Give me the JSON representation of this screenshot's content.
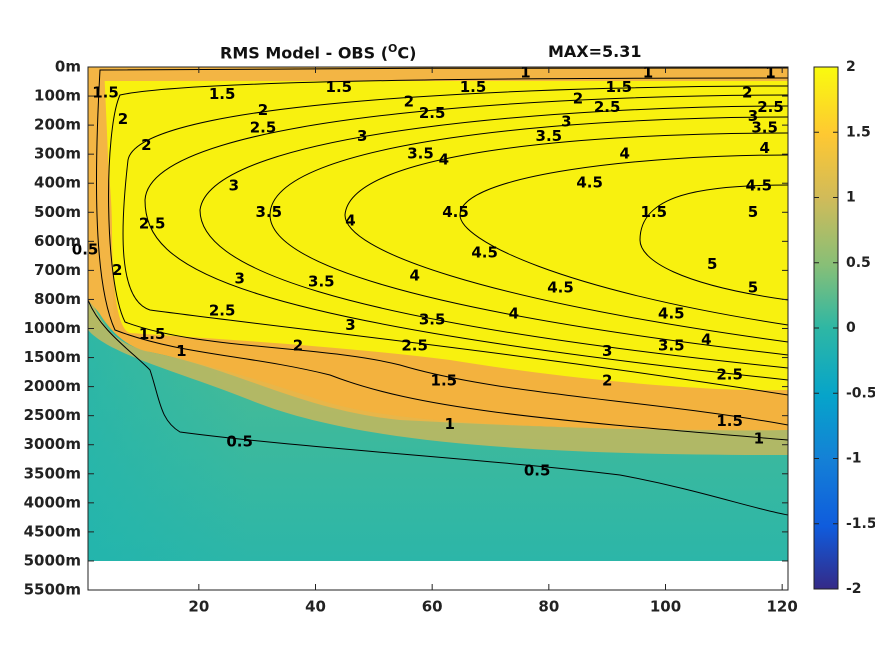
{
  "chart_data": {
    "type": "heatmap",
    "title": "RMS Model - OBS (",
    "title_unit": "°C)",
    "title_unit_sup": "O",
    "title_unit_tail": "C)",
    "max_label": "MAX=5.31",
    "x_ticks": [
      20,
      40,
      60,
      80,
      100,
      120
    ],
    "x_range": [
      1,
      121
    ],
    "y_ticks": [
      "0m",
      "100m",
      "200m",
      "300m",
      "400m",
      "500m",
      "600m",
      "700m",
      "800m",
      "1000m",
      "1500m",
      "2000m",
      "2500m",
      "3000m",
      "3500m",
      "4000m",
      "4500m",
      "5000m",
      "5500m"
    ],
    "data_bottom_label": "5000m",
    "colorbar": {
      "range": [
        -2,
        2
      ],
      "ticks": [
        "2",
        "1.5",
        "1",
        "0.5",
        "0",
        "-0.5",
        "-1",
        "-1.5",
        "-2"
      ],
      "colormap": "parula"
    },
    "contour_levels": [
      0.5,
      1,
      1.5,
      2,
      2.5,
      3,
      3.5,
      4,
      4.5,
      5
    ],
    "contour_labels": [
      {
        "text": "1.5",
        "x": 4,
        "y": 0.9
      },
      {
        "text": "1.5",
        "x": 24,
        "y": 0.95
      },
      {
        "text": "1.5",
        "x": 44,
        "y": 0.7
      },
      {
        "text": "1.5",
        "x": 67,
        "y": 0.7
      },
      {
        "text": "1",
        "x": 76,
        "y": 0.2
      },
      {
        "text": "1.5",
        "x": 92,
        "y": 0.7
      },
      {
        "text": "1",
        "x": 97,
        "y": 0.2
      },
      {
        "text": "1",
        "x": 118,
        "y": 0.2
      },
      {
        "text": "2",
        "x": 31,
        "y": 1.5
      },
      {
        "text": "2",
        "x": 56,
        "y": 1.2
      },
      {
        "text": "2",
        "x": 85,
        "y": 1.1
      },
      {
        "text": "2",
        "x": 114,
        "y": 0.9
      },
      {
        "text": "2.5",
        "x": 31,
        "y": 2.1
      },
      {
        "text": "2.5",
        "x": 60,
        "y": 1.6
      },
      {
        "text": "2.5",
        "x": 90,
        "y": 1.4
      },
      {
        "text": "2.5",
        "x": 118,
        "y": 1.4
      },
      {
        "text": "3",
        "x": 48,
        "y": 2.4
      },
      {
        "text": "3",
        "x": 83,
        "y": 1.9
      },
      {
        "text": "3",
        "x": 115,
        "y": 1.7
      },
      {
        "text": "3.5",
        "x": 58,
        "y": 3.0
      },
      {
        "text": "3.5",
        "x": 80,
        "y": 2.4
      },
      {
        "text": "3.5",
        "x": 117,
        "y": 2.1
      },
      {
        "text": "4",
        "x": 62,
        "y": 3.2
      },
      {
        "text": "4",
        "x": 93,
        "y": 3.0
      },
      {
        "text": "4",
        "x": 117,
        "y": 2.8
      },
      {
        "text": "4.5",
        "x": 87,
        "y": 4.0
      },
      {
        "text": "4.5",
        "x": 116,
        "y": 4.1
      },
      {
        "text": "5",
        "x": 115,
        "y": 5.0
      },
      {
        "text": "1.5",
        "x": 98,
        "y": 5.0
      },
      {
        "text": "2",
        "x": 7,
        "y": 1.8
      },
      {
        "text": "2",
        "x": 11,
        "y": 2.7
      },
      {
        "text": "3",
        "x": 26,
        "y": 4.1
      },
      {
        "text": "3.5",
        "x": 32,
        "y": 5.0
      },
      {
        "text": "4",
        "x": 46,
        "y": 5.3
      },
      {
        "text": "4.5",
        "x": 64,
        "y": 5.0
      },
      {
        "text": "2.5",
        "x": 12,
        "y": 5.4
      },
      {
        "text": "0.5",
        "x": 0.5,
        "y": 6.3
      },
      {
        "text": "2",
        "x": 6,
        "y": 7.0
      },
      {
        "text": "3",
        "x": 27,
        "y": 7.3
      },
      {
        "text": "3.5",
        "x": 41,
        "y": 7.4
      },
      {
        "text": "4",
        "x": 57,
        "y": 7.2
      },
      {
        "text": "4.5",
        "x": 69,
        "y": 6.4
      },
      {
        "text": "4.5",
        "x": 82,
        "y": 7.6
      },
      {
        "text": "5",
        "x": 108,
        "y": 6.8
      },
      {
        "text": "5",
        "x": 115,
        "y": 7.6
      },
      {
        "text": "2.5",
        "x": 24,
        "y": 8.4
      },
      {
        "text": "3",
        "x": 46,
        "y": 8.9
      },
      {
        "text": "3.5",
        "x": 60,
        "y": 8.7
      },
      {
        "text": "4",
        "x": 74,
        "y": 8.5
      },
      {
        "text": "4.5",
        "x": 101,
        "y": 8.5
      },
      {
        "text": "4",
        "x": 107,
        "y": 9.4
      },
      {
        "text": "1.5",
        "x": 12,
        "y": 9.2
      },
      {
        "text": "1",
        "x": 17,
        "y": 9.8
      },
      {
        "text": "2",
        "x": 37,
        "y": 9.6
      },
      {
        "text": "2.5",
        "x": 57,
        "y": 9.6
      },
      {
        "text": "3",
        "x": 90,
        "y": 9.8
      },
      {
        "text": "3.5",
        "x": 101,
        "y": 9.6
      },
      {
        "text": "1.5",
        "x": 62,
        "y": 10.8
      },
      {
        "text": "2",
        "x": 90,
        "y": 10.8
      },
      {
        "text": "2.5",
        "x": 111,
        "y": 10.6
      },
      {
        "text": "1.5",
        "x": 111,
        "y": 12.2
      },
      {
        "text": "1",
        "x": 63,
        "y": 12.3
      },
      {
        "text": "1",
        "x": 116,
        "y": 12.8
      },
      {
        "text": "0.5",
        "x": 27,
        "y": 12.9
      },
      {
        "text": "0.5",
        "x": 78,
        "y": 13.9
      }
    ]
  }
}
